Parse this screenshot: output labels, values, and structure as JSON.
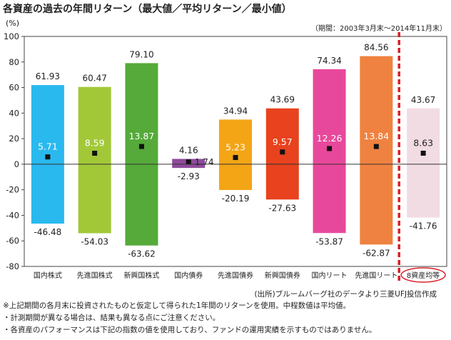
{
  "header": {
    "title": "各資産の過去の年間リターン（最大値／平均リターン／最小値）",
    "period": "（期間：2003年3月末～2014年11月末）",
    "unit": "(%)"
  },
  "chart_data": {
    "type": "bar",
    "categories": [
      "国内株式",
      "先進国株式",
      "新興国株式",
      "国内債券",
      "先進国債券",
      "新興国債券",
      "国内リート",
      "先進国リート",
      "8資産均等"
    ],
    "max_label": "最大値",
    "avg_label": "平均リターン",
    "min_label": "最小値",
    "max": [
      61.93,
      60.47,
      79.1,
      4.16,
      34.94,
      43.69,
      74.34,
      84.56,
      43.67
    ],
    "avg": [
      5.71,
      8.59,
      13.87,
      1.74,
      5.23,
      9.57,
      12.26,
      13.84,
      8.63
    ],
    "min": [
      -46.48,
      -54.03,
      -63.62,
      -2.93,
      -20.19,
      -27.63,
      -53.87,
      -62.87,
      -41.76
    ],
    "max_labels": [
      "61.93",
      "60.47",
      "79.10",
      "4.16",
      "34.94",
      "43.69",
      "74.34",
      "84.56",
      "43.67"
    ],
    "avg_labels": [
      "5.71",
      "8.59",
      "13.87",
      "1.74",
      "5.23",
      "9.57",
      "12.26",
      "13.84",
      "8.63"
    ],
    "min_labels": [
      "-46.48",
      "-54.03",
      "-63.62",
      "-2.93",
      "-20.19",
      "-27.63",
      "-53.87",
      "-62.87",
      "-41.76"
    ],
    "colors": [
      "#29b9ee",
      "#a2c838",
      "#55aa3a",
      "#8e4b9b",
      "#f3a516",
      "#e8421e",
      "#e8489b",
      "#ef8240",
      "#f2dce3"
    ],
    "yticks": [
      100,
      80,
      60,
      40,
      20,
      0,
      -20,
      -40,
      -60,
      -80
    ],
    "ylim": [
      -80,
      100
    ],
    "grid": false,
    "separator_color": "#d8202a",
    "highlight_color": "#d8202a"
  },
  "footer": {
    "source": "(出所)ブルームバーグ社のデータより三菱UFJ投信作成",
    "notes": [
      "※上記期間の各月末に投資されたものと仮定して得られた1年間のリターンを使用。中程数値は平均値。",
      "・計測期間が異なる場合は、結果も異なる点にご注意ください。",
      "・各資産のパフォーマンスは下記の指数の値を使用しており、ファンドの運用実績を示すものではありません。"
    ]
  }
}
